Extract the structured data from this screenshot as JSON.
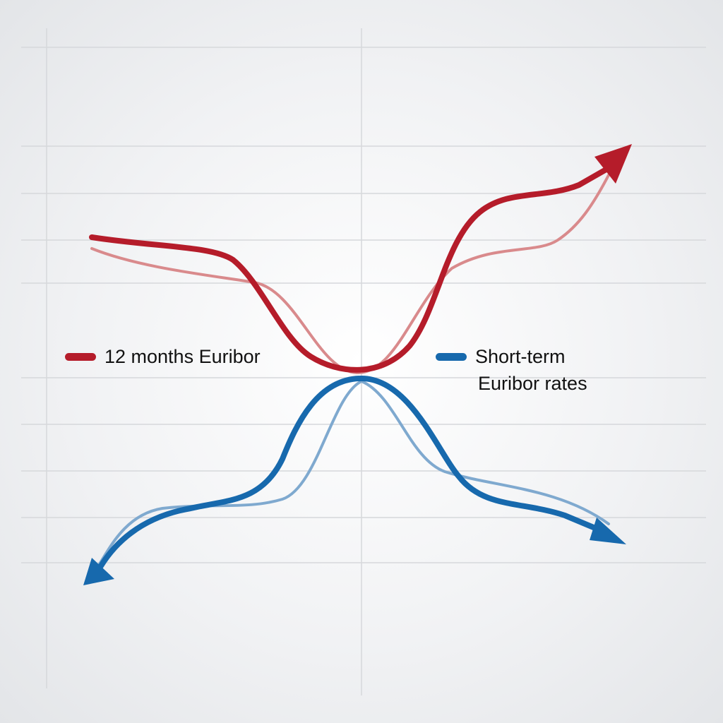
{
  "colors": {
    "red": "#b51c2a",
    "red_faded": "#d98a8c",
    "blue": "#1769ad",
    "blue_faded": "#7fa9cf",
    "grid": "#d6d8db"
  },
  "legend": [
    {
      "label": "12 months Euribor",
      "color": "#b51c2a"
    },
    {
      "label_line1": "Short-term",
      "label_line2": "Euribor rates",
      "color": "#1769ad"
    }
  ]
}
